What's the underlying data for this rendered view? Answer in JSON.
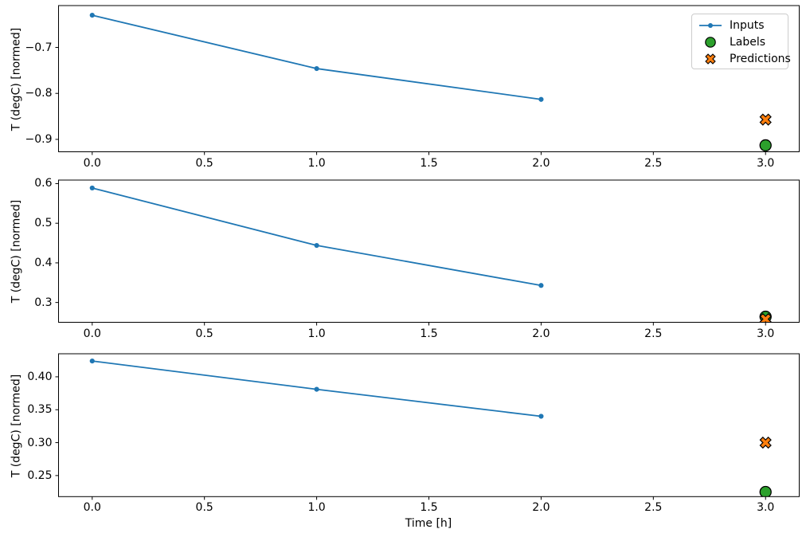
{
  "figure": {
    "background": "#ffffff",
    "axes_color": "#000000",
    "text_color": "#000000"
  },
  "xlabel": "Time [h]",
  "ylabel": "T (degC) [normed]",
  "legend": {
    "location": "upper right of first subplot",
    "border_color": "#cccccc",
    "items": [
      {
        "label": "Inputs",
        "marker": "line-dot",
        "color": "#1f77b4"
      },
      {
        "label": "Labels",
        "marker": "circle",
        "color": "#2ca02c"
      },
      {
        "label": "Predictions",
        "marker": "x",
        "color": "#ff7f0e"
      }
    ]
  },
  "chart_data": [
    {
      "type": "line",
      "subplot": 1,
      "ylabel": "T (degC) [normed]",
      "xlabel": "",
      "grid": false,
      "xlim": [
        -0.15,
        3.15
      ],
      "ylim": [
        -0.927,
        -0.609
      ],
      "xticks": [
        {
          "v": 0.0,
          "label": "0.0"
        },
        {
          "v": 0.5,
          "label": "0.5"
        },
        {
          "v": 1.0,
          "label": "1.0"
        },
        {
          "v": 1.5,
          "label": "1.5"
        },
        {
          "v": 2.0,
          "label": "2.0"
        },
        {
          "v": 2.5,
          "label": "2.5"
        },
        {
          "v": 3.0,
          "label": "3.0"
        }
      ],
      "yticks": [
        {
          "v": -0.9,
          "label": "−0.9"
        },
        {
          "v": -0.8,
          "label": "−0.8"
        },
        {
          "v": -0.7,
          "label": "−0.7"
        }
      ],
      "series": [
        {
          "name": "Inputs",
          "kind": "line",
          "color": "#1f77b4",
          "x": [
            0.0,
            1.0,
            2.0
          ],
          "y": [
            -0.63,
            -0.746,
            -0.813
          ]
        },
        {
          "name": "Labels",
          "kind": "scatter",
          "marker": "circle",
          "color": "#2ca02c",
          "x": [
            3.0
          ],
          "y": [
            -0.913
          ]
        },
        {
          "name": "Predictions",
          "kind": "scatter",
          "marker": "X",
          "color": "#ff7f0e",
          "x": [
            3.0
          ],
          "y": [
            -0.857
          ]
        }
      ]
    },
    {
      "type": "line",
      "subplot": 2,
      "ylabel": "T (degC) [normed]",
      "xlabel": "",
      "grid": false,
      "xlim": [
        -0.15,
        3.15
      ],
      "ylim": [
        0.25,
        0.609
      ],
      "xticks": [
        {
          "v": 0.0,
          "label": "0.0"
        },
        {
          "v": 0.5,
          "label": "0.5"
        },
        {
          "v": 1.0,
          "label": "1.0"
        },
        {
          "v": 1.5,
          "label": "1.5"
        },
        {
          "v": 2.0,
          "label": "2.0"
        },
        {
          "v": 2.5,
          "label": "2.5"
        },
        {
          "v": 3.0,
          "label": "3.0"
        }
      ],
      "yticks": [
        {
          "v": 0.3,
          "label": "0.3"
        },
        {
          "v": 0.4,
          "label": "0.4"
        },
        {
          "v": 0.5,
          "label": "0.5"
        },
        {
          "v": 0.6,
          "label": "0.6"
        }
      ],
      "series": [
        {
          "name": "Inputs",
          "kind": "line",
          "color": "#1f77b4",
          "x": [
            0.0,
            1.0,
            2.0
          ],
          "y": [
            0.589,
            0.444,
            0.343
          ]
        },
        {
          "name": "Labels",
          "kind": "scatter",
          "marker": "circle",
          "color": "#2ca02c",
          "x": [
            3.0
          ],
          "y": [
            0.264
          ]
        },
        {
          "name": "Predictions",
          "kind": "scatter",
          "marker": "X",
          "color": "#ff7f0e",
          "x": [
            3.0
          ],
          "y": [
            0.258
          ]
        }
      ]
    },
    {
      "type": "line",
      "subplot": 3,
      "ylabel": "T (degC) [normed]",
      "xlabel": "Time [h]",
      "grid": false,
      "xlim": [
        -0.15,
        3.15
      ],
      "ylim": [
        0.218,
        0.435
      ],
      "xticks": [
        {
          "v": 0.0,
          "label": "0.0"
        },
        {
          "v": 0.5,
          "label": "0.5"
        },
        {
          "v": 1.0,
          "label": "1.0"
        },
        {
          "v": 1.5,
          "label": "1.5"
        },
        {
          "v": 2.0,
          "label": "2.0"
        },
        {
          "v": 2.5,
          "label": "2.5"
        },
        {
          "v": 3.0,
          "label": "3.0"
        }
      ],
      "yticks": [
        {
          "v": 0.25,
          "label": "0.25"
        },
        {
          "v": 0.3,
          "label": "0.30"
        },
        {
          "v": 0.35,
          "label": "0.35"
        },
        {
          "v": 0.4,
          "label": "0.40"
        }
      ],
      "series": [
        {
          "name": "Inputs",
          "kind": "line",
          "color": "#1f77b4",
          "x": [
            0.0,
            1.0,
            2.0
          ],
          "y": [
            0.424,
            0.381,
            0.34
          ]
        },
        {
          "name": "Labels",
          "kind": "scatter",
          "marker": "circle",
          "color": "#2ca02c",
          "x": [
            3.0
          ],
          "y": [
            0.225
          ]
        },
        {
          "name": "Predictions",
          "kind": "scatter",
          "marker": "X",
          "color": "#ff7f0e",
          "x": [
            3.0
          ],
          "y": [
            0.3
          ]
        }
      ]
    }
  ]
}
